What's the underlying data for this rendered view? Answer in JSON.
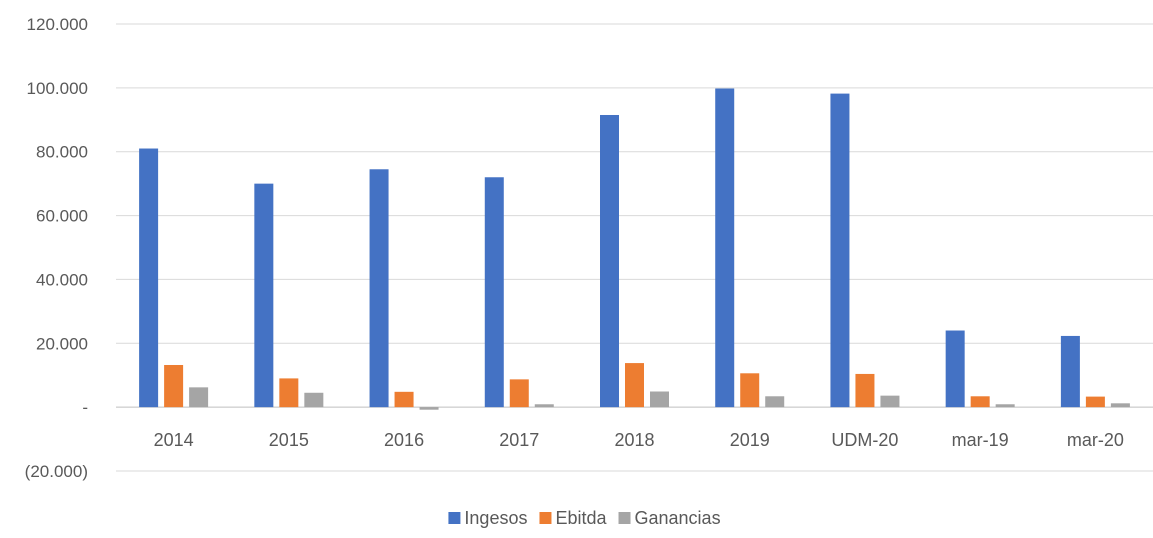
{
  "chart_data": {
    "type": "bar",
    "title": "",
    "xlabel": "",
    "ylabel": "",
    "categories": [
      "2014",
      "2015",
      "2016",
      "2017",
      "2018",
      "2019",
      "UDM-20",
      "mar-19",
      "mar-20"
    ],
    "ylim": [
      -20000,
      120000
    ],
    "yticks": [
      {
        "value": 120000,
        "label": "120.000"
      },
      {
        "value": 100000,
        "label": "100.000"
      },
      {
        "value": 80000,
        "label": "80.000"
      },
      {
        "value": 60000,
        "label": "60.000"
      },
      {
        "value": 40000,
        "label": "40.000"
      },
      {
        "value": 20000,
        "label": "20.000"
      },
      {
        "value": 0,
        "label": "-"
      },
      {
        "value": -20000,
        "label": "(20.000)"
      }
    ],
    "series": [
      {
        "name": "Ingesos",
        "color": "#4472C4",
        "values": [
          81000,
          70000,
          74500,
          72000,
          91500,
          99800,
          98200,
          24000,
          22300
        ]
      },
      {
        "name": "Ebitda",
        "color": "#ED7D31",
        "values": [
          13200,
          9000,
          4800,
          8700,
          13800,
          10600,
          10400,
          3400,
          3300
        ]
      },
      {
        "name": "Ganancias",
        "color": "#A5A5A5",
        "values": [
          6200,
          4500,
          -800,
          900,
          4900,
          3400,
          3600,
          900,
          1200
        ]
      }
    ],
    "grid": true,
    "legend_position": "bottom"
  }
}
